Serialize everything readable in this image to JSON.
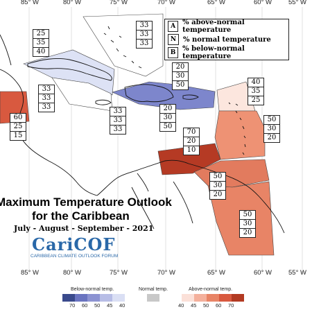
{
  "map": {
    "title_line1": "Maximum Temperature Outlook",
    "title_line2": "for the Caribbean",
    "period": "July - August - September - 2021",
    "longitudes_top": [
      "85° W",
      "80° W",
      "75° W",
      "70° W",
      "65° W",
      "60° W",
      "55° W"
    ],
    "longitudes_bottom": [
      "85° W",
      "80° W",
      "75° W",
      "70° W",
      "65° W",
      "60° W",
      "55° W"
    ]
  },
  "legend": {
    "items": [
      {
        "key": "A",
        "label": "% above-normal temperature"
      },
      {
        "key": "N",
        "label": "% normal temperature"
      },
      {
        "key": "B",
        "label": "% below-normal temperature"
      }
    ]
  },
  "logo": {
    "name": "CariCOF",
    "subtitle": "CARIBBEAN CLIMATE OUTLOOK FORUM"
  },
  "probabilities": [
    {
      "region": "Bahamas north",
      "a": "33",
      "n": "33",
      "b": "33"
    },
    {
      "region": "Cuba",
      "a": "25",
      "n": "35",
      "b": "40"
    },
    {
      "region": "Western Caribbean",
      "a": "33",
      "n": "33",
      "b": "33"
    },
    {
      "region": "Central America east",
      "a": "60",
      "n": "25",
      "b": "15"
    },
    {
      "region": "Jamaica",
      "a": "33",
      "n": "33",
      "b": "33"
    },
    {
      "region": "Hispaniola",
      "a": "20",
      "n": "30",
      "b": "50"
    },
    {
      "region": "Puerto Rico",
      "a": "20",
      "n": "30",
      "b": "50"
    },
    {
      "region": "Northern Leewards",
      "a": "40",
      "n": "35",
      "b": "25"
    },
    {
      "region": "Lesser Antilles",
      "a": "50",
      "n": "30",
      "b": "20"
    },
    {
      "region": "ABC Islands",
      "a": "70",
      "n": "20",
      "b": "10"
    },
    {
      "region": "Trinidad",
      "a": "50",
      "n": "30",
      "b": "20"
    },
    {
      "region": "Guianas",
      "a": "50",
      "n": "30",
      "b": "20"
    }
  ],
  "scale": {
    "below_label": "Below-normal temp.",
    "normal_label": "Normal temp.",
    "above_label": "Above-normal temp.",
    "below_ticks": [
      "70",
      "60",
      "50",
      "45",
      "40"
    ],
    "above_ticks": [
      "40",
      "45",
      "50",
      "60",
      "70"
    ],
    "below_colors": [
      "#3a4a8c",
      "#6a74c0",
      "#8c93d2",
      "#b7bde6",
      "#dadff4"
    ],
    "normal_color": "#c8c8c8",
    "above_colors": [
      "#fbe0d8",
      "#f4b09c",
      "#e88466",
      "#d8593f",
      "#b23a22"
    ]
  }
}
